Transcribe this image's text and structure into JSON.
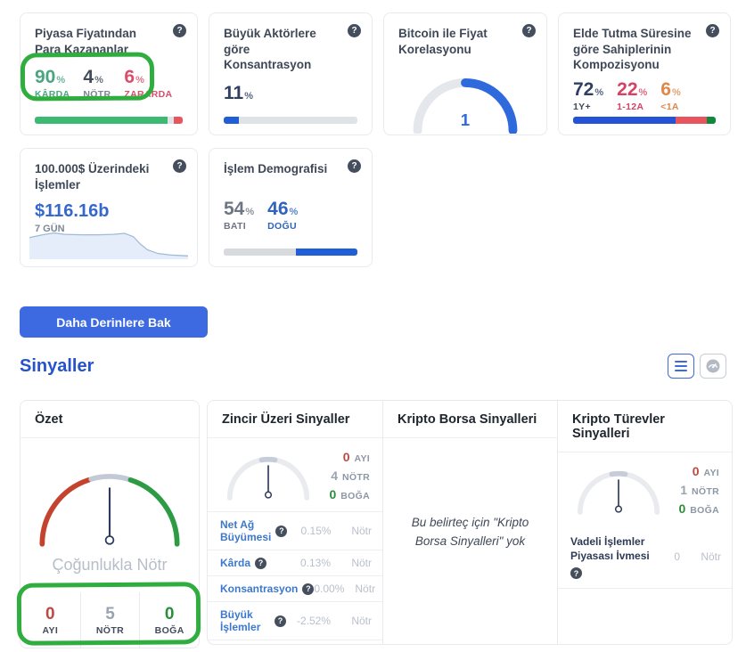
{
  "icons": {
    "help": "?"
  },
  "colors": {
    "accent_blue": "#3d6ae0",
    "heading_blue": "#2553cc",
    "bar_blue": "#1f5ed6",
    "green": "#3dba71",
    "teal_green": "#4ba581",
    "red": "#e8555f",
    "crimson": "#d64265",
    "orange": "#e0884a",
    "navy": "#2e3f63",
    "gauge_red": "#c4432f",
    "gauge_green": "#2d9b43",
    "gauge_neutral": "#c3cad6",
    "annotation_green": "#2fad3f",
    "muted_text": "#b9c0cb"
  },
  "overview_cards": {
    "in_money": {
      "title": "Piyasa Fiyatından Para Kazananlar",
      "stats": [
        {
          "value": "90",
          "unit": "%",
          "label": "KÂRDA"
        },
        {
          "value": "4",
          "unit": "%",
          "label": "NÖTR"
        },
        {
          "value": "6",
          "unit": "%",
          "label": "ZARARDA"
        }
      ],
      "bar_segments": [
        90,
        4,
        6
      ]
    },
    "concentration": {
      "title": "Büyük Aktörlere göre Konsantrasyon",
      "stat": {
        "value": "11",
        "unit": "%"
      },
      "bar_pct": 11
    },
    "correlation": {
      "title": "Bitcoin ile Fiyat Korelasyonu",
      "gauge_value": "1"
    },
    "holders": {
      "title": "Elde Tutma Süresine göre Sahiplerinin Kompozisyonu",
      "stats": [
        {
          "value": "72",
          "unit": "%",
          "label": "1Y+"
        },
        {
          "value": "22",
          "unit": "%",
          "label": "1-12A"
        },
        {
          "value": "6",
          "unit": "%",
          "label": "<1A"
        }
      ],
      "bar_segments": [
        72,
        22,
        6
      ]
    },
    "large_txs": {
      "title": "100.000$ Üzerindeki İşlemler",
      "value": "$116.16b",
      "period": "7 GÜN",
      "trend": [
        [
          0,
          15
        ],
        [
          15,
          12
        ],
        [
          28,
          10
        ],
        [
          40,
          11.5
        ],
        [
          60,
          12
        ],
        [
          78,
          12
        ],
        [
          95,
          11.5
        ],
        [
          108,
          10.5
        ],
        [
          118,
          14
        ],
        [
          126,
          22
        ],
        [
          134,
          28
        ],
        [
          146,
          32
        ],
        [
          160,
          33.5
        ],
        [
          180,
          34.5
        ]
      ]
    },
    "demography": {
      "title": "İşlem Demografisi",
      "stats": [
        {
          "value": "54",
          "unit": "%",
          "label": "BATI"
        },
        {
          "value": "46",
          "unit": "%",
          "label": "DOĞU"
        }
      ],
      "bar_segments": [
        54,
        46
      ]
    }
  },
  "actions": {
    "dive_deeper_label": "Daha Derinlere Bak"
  },
  "signals": {
    "heading": "Sinyaller",
    "summary": {
      "title": "Özet",
      "gauge_label": "Çoğunlukla Nötr",
      "stats": [
        {
          "value": "0",
          "label": "AYI"
        },
        {
          "value": "5",
          "label": "NÖTR"
        },
        {
          "value": "0",
          "label": "BOĞA"
        }
      ]
    },
    "onchain": {
      "title": "Zincir Üzeri Sinyaller",
      "stats": [
        {
          "value": "0",
          "label": "AYI"
        },
        {
          "value": "4",
          "label": "NÖTR"
        },
        {
          "value": "0",
          "label": "BOĞA"
        }
      ],
      "rows": [
        {
          "label": "Net Ağ Büyümesi",
          "value": "0.15%",
          "status": "Nötr"
        },
        {
          "label": "Kârda",
          "value": "0.13%",
          "status": "Nötr"
        },
        {
          "label": "Konsantrasyon",
          "value": "0.00%",
          "status": "Nötr"
        },
        {
          "label": "Büyük İşlemler",
          "value": "-2.52%",
          "status": "Nötr"
        }
      ]
    },
    "exchange": {
      "title": "Kripto Borsa Sinyalleri",
      "empty_message": "Bu belirteç için \"Kripto Borsa Sinyalleri\" yok"
    },
    "derivatives": {
      "title": "Kripto Türevler Sinyalleri",
      "stats": [
        {
          "value": "0",
          "label": "AYI"
        },
        {
          "value": "1",
          "label": "NÖTR"
        },
        {
          "value": "0",
          "label": "BOĞA"
        }
      ],
      "rows": [
        {
          "label": "Vadeli İşlemler Piyasası İvmesi",
          "value": "0",
          "status": "Nötr"
        }
      ]
    }
  }
}
